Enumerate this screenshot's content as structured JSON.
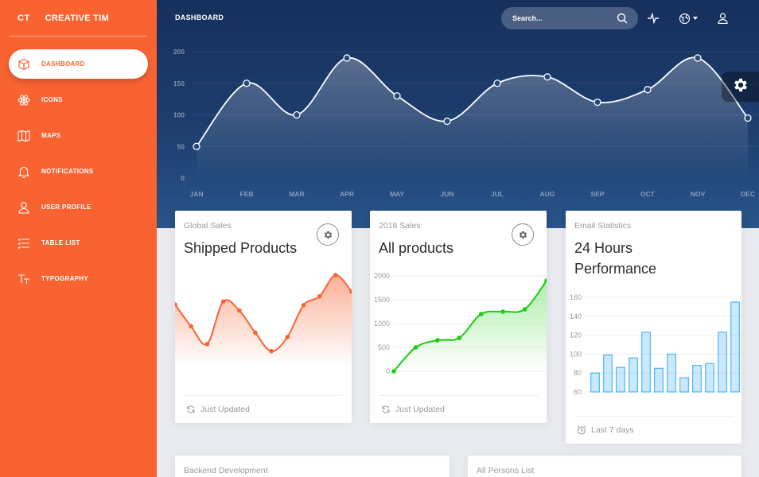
{
  "brand": {
    "mini": "CT",
    "name": "CREATIVE TIM"
  },
  "sidebar": {
    "items": [
      {
        "label": "DASHBOARD",
        "icon": "cube-icon",
        "active": true
      },
      {
        "label": "ICONS",
        "icon": "atom-icon",
        "active": false
      },
      {
        "label": "MAPS",
        "icon": "map-icon",
        "active": false
      },
      {
        "label": "NOTIFICATIONS",
        "icon": "bell-icon",
        "active": false
      },
      {
        "label": "USER PROFILE",
        "icon": "user-icon",
        "active": false
      },
      {
        "label": "TABLE LIST",
        "icon": "list-icon",
        "active": false
      },
      {
        "label": "TYPOGRAPHY",
        "icon": "text-icon",
        "active": false
      }
    ]
  },
  "header": {
    "title": "DASHBOARD",
    "search_placeholder": "Search..."
  },
  "colors": {
    "sidebar": "#f96332",
    "header": "#1d3d6e",
    "orange_line": "#f96332",
    "green_line": "#18ce0f",
    "blue_bar": "#2ca8ff"
  },
  "chart_data": [
    {
      "type": "line",
      "x": [
        "JAN",
        "FEB",
        "MAR",
        "APR",
        "MAY",
        "JUN",
        "JUL",
        "AUG",
        "SEP",
        "OCT",
        "NOV",
        "DEC"
      ],
      "values": [
        50,
        150,
        100,
        190,
        130,
        90,
        150,
        160,
        120,
        140,
        190,
        95
      ],
      "yticks": [
        0,
        50,
        100,
        150,
        200
      ],
      "ylim": [
        0,
        200
      ]
    },
    {
      "type": "area",
      "category": "Global Sales",
      "title": "Shipped Products",
      "values": [
        542,
        480,
        430,
        550,
        525,
        462,
        410,
        450,
        540,
        565,
        625,
        578
      ]
    },
    {
      "type": "area",
      "category": "2018 Sales",
      "title": "All products",
      "values": [
        0,
        500,
        650,
        700,
        1200,
        1250,
        1300,
        1900
      ],
      "yticks": [
        0,
        500,
        1000,
        1500,
        2000
      ],
      "ylim": [
        0,
        2000
      ]
    },
    {
      "type": "bar",
      "category": "Email Statistics",
      "title": "24 Hours Performance",
      "values": [
        80,
        99,
        86,
        96,
        123,
        85,
        100,
        75,
        88,
        90,
        123,
        155
      ],
      "yticks": [
        60,
        80,
        100,
        120,
        140,
        160
      ],
      "ylim": [
        60,
        165
      ]
    }
  ],
  "cards": {
    "shipped": {
      "category": "Global Sales",
      "title": "Shipped Products",
      "footer": "Just Updated"
    },
    "allproducts": {
      "category": "2018 Sales",
      "title": "All products",
      "footer": "Just Updated"
    },
    "email": {
      "category": "Email Statistics",
      "title_line1": "24 Hours",
      "title_line2": "Performance",
      "footer": "Last 7 days"
    },
    "backend": {
      "category": "Backend Development"
    },
    "persons": {
      "category": "All Persons List"
    }
  }
}
